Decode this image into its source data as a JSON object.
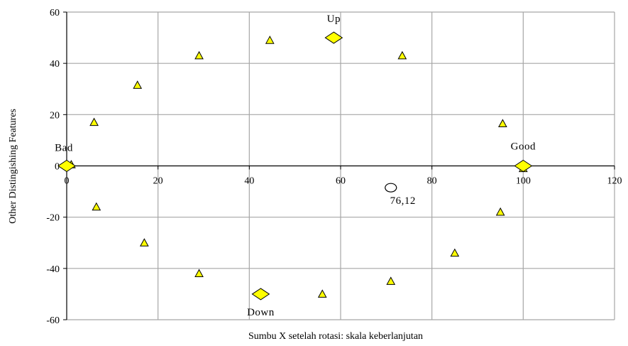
{
  "chart_data": {
    "type": "scatter",
    "xlabel": "Sumbu X setelah rotasi: skala keberlanjutan",
    "ylabel": "Other Distingishing Features",
    "xlim": [
      0,
      120
    ],
    "ylim": [
      -60,
      60
    ],
    "xticks": [
      0,
      20,
      40,
      60,
      80,
      100,
      120
    ],
    "yticks": [
      -60,
      -40,
      -20,
      0,
      20,
      40,
      60
    ],
    "grid": true,
    "series": [
      {
        "marker": "triangle",
        "color": "#ffff00",
        "points": [
          [
            1,
            0.5
          ],
          [
            6,
            17
          ],
          [
            6.5,
            -16
          ],
          [
            15.5,
            31.5
          ],
          [
            17,
            -30
          ],
          [
            29,
            43
          ],
          [
            29,
            -42
          ],
          [
            44.5,
            49
          ],
          [
            56,
            -50
          ],
          [
            71,
            -45
          ],
          [
            73.5,
            43
          ],
          [
            85,
            -34
          ],
          [
            95,
            -18
          ],
          [
            95.5,
            16.5
          ],
          [
            100,
            -1
          ]
        ]
      },
      {
        "marker": "diamond",
        "color": "#ffff00",
        "points": [
          {
            "x": 0,
            "y": 0,
            "label": "Bad"
          },
          {
            "x": 58.5,
            "y": 50,
            "label": "Up"
          },
          {
            "x": 100,
            "y": 0,
            "label": "Good"
          },
          {
            "x": 42.5,
            "y": -50,
            "label": "Down"
          }
        ]
      },
      {
        "marker": "circle",
        "color": "#ffffff",
        "points": [
          {
            "x": 71,
            "y": -8.5,
            "label": "76,12"
          }
        ]
      }
    ]
  }
}
